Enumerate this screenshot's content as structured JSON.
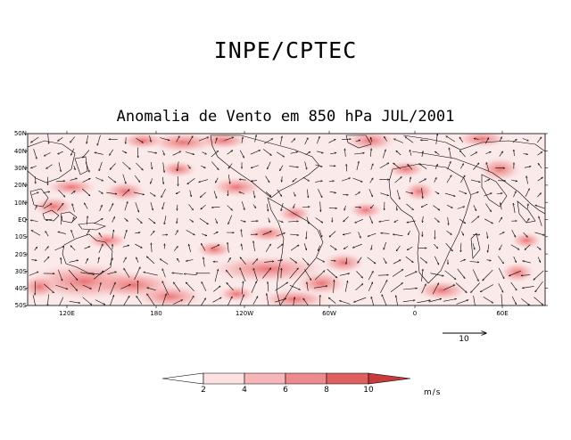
{
  "header": {
    "institution": "INPE/CPTEC"
  },
  "map": {
    "title": "Anomalia de Vento em 850 hPa JUL/2001",
    "variable": "Wind anomaly 850 hPa",
    "lat_labels": [
      "50N",
      "40N",
      "30N",
      "20N",
      "10N",
      "EQ",
      "10S",
      "20S",
      "30S",
      "40S",
      "50S"
    ],
    "lon_labels": [
      "120E",
      "180",
      "120W",
      "60W",
      "0",
      "60E"
    ],
    "reference_vector": {
      "label": "10",
      "magnitude": 10
    },
    "shading_color": "#e85f62"
  },
  "colorbar": {
    "ticks": [
      "2",
      "4",
      "6",
      "8",
      "10"
    ],
    "unit": "m/s",
    "colors": [
      "#ffffff",
      "#fde1e2",
      "#f7b7b8",
      "#ef8a8c",
      "#e0605f",
      "#c83a3b"
    ]
  }
}
